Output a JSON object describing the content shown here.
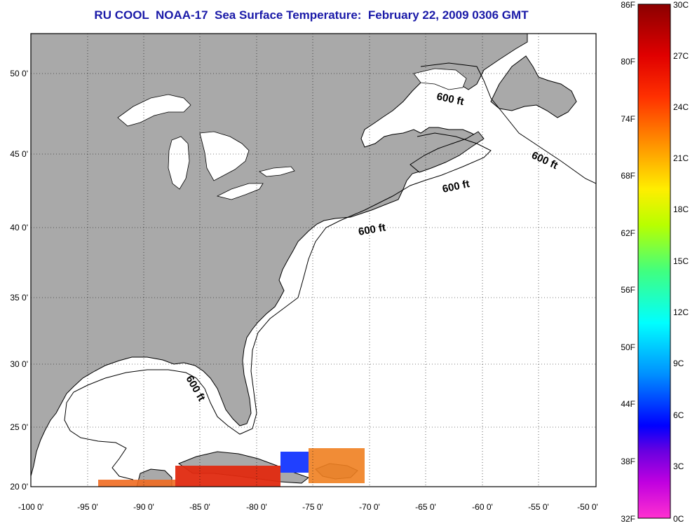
{
  "title": "RU COOL  NOAA-17  Sea Surface Temperature:  February 22, 2009 0306 GMT",
  "map": {
    "x_ticks": [
      "-100 0'",
      "-95 0'",
      "-90 0'",
      "-85 0'",
      "-80 0'",
      "-75 0'",
      "-70 0'",
      "-65 0'",
      "-60 0'",
      "-55 0'",
      "-50 0'"
    ],
    "y_ticks": [
      "50 0'",
      "45 0'",
      "40 0'",
      "35 0'",
      "30 0'",
      "25 0'",
      "20 0'"
    ],
    "contour_labels": [
      "600 ft",
      "600 ft",
      "600 ft",
      "600 ft",
      "600 ft"
    ],
    "land_color": "#a9a9a9",
    "ocean_color": "#ffffff",
    "gridlines": "dotted",
    "lon_range": [
      -100,
      -50
    ],
    "lat_range": [
      20,
      52
    ]
  },
  "colorbar": {
    "f_labels": [
      "86F",
      "80F",
      "74F",
      "68F",
      "62F",
      "56F",
      "50F",
      "44F",
      "38F",
      "32F"
    ],
    "c_labels": [
      "30C",
      "27C",
      "24C",
      "21C",
      "18C",
      "15C",
      "12C",
      "9C",
      "6C",
      "3C",
      "0C"
    ]
  }
}
